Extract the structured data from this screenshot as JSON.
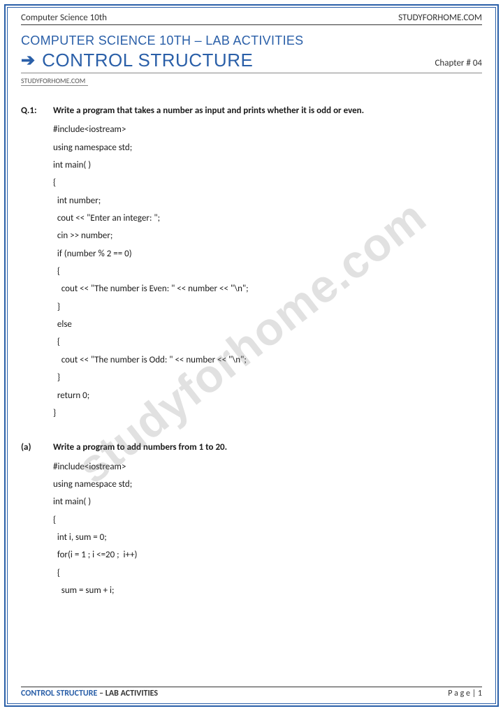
{
  "colors": {
    "brand": "#2a5fa8",
    "text": "#1a1a1a",
    "rule": "#333333",
    "watermark": "rgba(120,120,120,0.22)",
    "background": "#ffffff"
  },
  "header": {
    "left": "Computer Science 10th",
    "right": "STUDYFORHOME.COM"
  },
  "title": "COMPUTER SCIENCE 10TH – LAB ACTIVITIES",
  "subtitle": "CONTROL STRUCTURE",
  "chapter": "Chapter # 04",
  "site_tag": "STUDYFORHOME.COM",
  "watermark": "studyforhome.com",
  "questions": [
    {
      "label": "Q.1:",
      "title": "Write a program that takes a number as input and prints whether it is odd or even.",
      "code": [
        "#include<iostream>",
        "using namespace std;",
        "int main( )",
        "{",
        "  int number;",
        "  cout << \"Enter an integer: \";",
        "  cin >> number;",
        "  if (number % 2 == 0)",
        "  {",
        "    cout << \"The number is Even: \" << number << \"\\n\";",
        "  }",
        "  else",
        "  {",
        "    cout << \"The number is Odd: \" << number << \"\\n\";",
        "  }",
        "  return 0;",
        "}"
      ]
    },
    {
      "label": "(a)",
      "title": "Write a program to add numbers from 1 to 20.",
      "code": [
        "#include<iostream>",
        "using namespace std;",
        "int main( )",
        "{",
        "  int i, sum = 0;",
        "  for(i = 1 ; i <=20 ;  i++)",
        "  {",
        "    sum = sum + i;"
      ]
    }
  ],
  "footer": {
    "left_strong": "CONTROL STRUCTURE",
    "left_rest": " – LAB ACTIVITIES",
    "right": "P a g e  | 1"
  }
}
